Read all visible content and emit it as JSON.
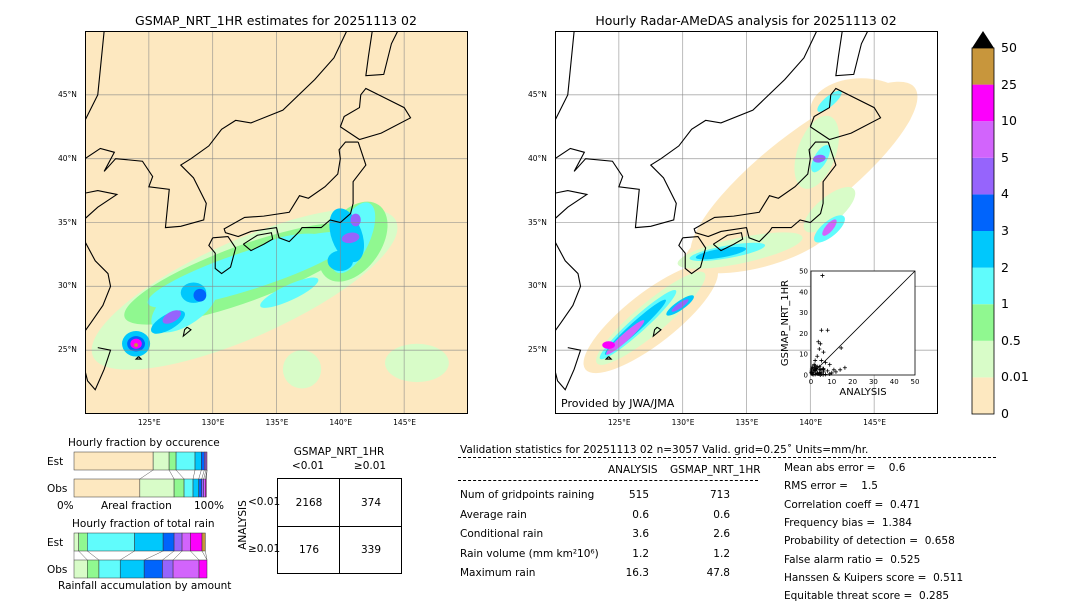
{
  "left_map": {
    "title": "GSMAP_NRT_1HR estimates for 20251113 02",
    "lat_labels": [
      "45°N",
      "40°N",
      "35°N",
      "30°N",
      "25°N"
    ],
    "lon_labels": [
      "125°E",
      "130°E",
      "135°E",
      "140°E",
      "145°E"
    ]
  },
  "right_map": {
    "title": "Hourly Radar-AMeDAS analysis for 20251113 02",
    "lat_labels": [
      "45°N",
      "40°N",
      "35°N",
      "30°N",
      "25°N"
    ],
    "lon_labels": [
      "125°E",
      "130°E",
      "135°E",
      "140°E",
      "145°E"
    ],
    "credit": "Provided by JWA/JMA"
  },
  "colorbar": {
    "labels": [
      "0",
      "0.01",
      "0.5",
      "1",
      "2",
      "3",
      "4",
      "5",
      "10",
      "25",
      "50"
    ],
    "colors": [
      "#fde8c0",
      "#d8fcc8",
      "#90f890",
      "#60fcfc",
      "#00c8fc",
      "#0064fc",
      "#9664fc",
      "#d264fc",
      "#fc00fc",
      "#c8963c"
    ],
    "extend_color": "#000000"
  },
  "chart_data": [
    {
      "type": "scatter",
      "xlabel": "ANALYSIS",
      "ylabel": "GSMAP_NRT_1HR",
      "xlim": [
        0,
        50
      ],
      "ylim": [
        0,
        50
      ],
      "ticks": [
        "0",
        "10",
        "20",
        "30",
        "40",
        "50"
      ],
      "diagonal": true,
      "points": [
        [
          5.5,
          47.8
        ],
        [
          5,
          21.5
        ],
        [
          8,
          21.5
        ],
        [
          3.5,
          16
        ],
        [
          4.5,
          15
        ],
        [
          4,
          12.5
        ],
        [
          14.5,
          13
        ],
        [
          6,
          11
        ],
        [
          3,
          9
        ],
        [
          2,
          7
        ],
        [
          5,
          7
        ],
        [
          7,
          6
        ],
        [
          9,
          5
        ],
        [
          11,
          2.5
        ],
        [
          16.3,
          3.5
        ],
        [
          14,
          2.5
        ],
        [
          1,
          3
        ],
        [
          2,
          2
        ],
        [
          3,
          1
        ],
        [
          4,
          2.5
        ],
        [
          1,
          1
        ],
        [
          0.5,
          0.5
        ],
        [
          2,
          0.3
        ],
        [
          3,
          4
        ],
        [
          6,
          3
        ],
        [
          8,
          2
        ],
        [
          10,
          1
        ],
        [
          12,
          1.5
        ],
        [
          0.3,
          2
        ],
        [
          1.5,
          5
        ],
        [
          2.5,
          3
        ],
        [
          4,
          1
        ],
        [
          5,
          0.5
        ],
        [
          6,
          1.5
        ],
        [
          7,
          0.3
        ],
        [
          9,
          0.5
        ],
        [
          1,
          0.2
        ],
        [
          0.2,
          1
        ],
        [
          3.5,
          0.5
        ],
        [
          2,
          4.5
        ]
      ]
    },
    {
      "type": "bar",
      "title": "Hourly fraction by occurence",
      "categories": [
        "Est",
        "Obs"
      ],
      "xlabel": "Areal fraction",
      "x_ticks": [
        "0%",
        "100%"
      ],
      "series": [
        {
          "values_percent": [
            59.5,
            12,
            5.25,
            14.25,
            4.75,
            2.25,
            1.25,
            0.75,
            0,
            0
          ]
        },
        {
          "values_percent": [
            49.5,
            25.75,
            7.5,
            6.75,
            4.25,
            2.25,
            1.5,
            1.25,
            0.75,
            0
          ]
        }
      ]
    },
    {
      "type": "bar",
      "title": "Hourly fraction of total rain",
      "categories": [
        "Est",
        "Obs"
      ],
      "xlabel": "Rainfall accumulation by amount",
      "series": [
        {
          "values_percent": [
            0,
            3.5,
            6.5,
            35.5,
            21.5,
            8.25,
            6,
            6.25,
            8.75,
            2.5
          ]
        },
        {
          "values_percent": [
            0,
            10,
            8.75,
            16,
            18,
            13.75,
            8,
            19.5,
            6,
            0
          ]
        }
      ]
    }
  ],
  "contingency": {
    "col_title": "GSMAP_NRT_1HR",
    "col_labels": [
      "<0.01",
      "≥0.01"
    ],
    "row_title": "ANALYSIS",
    "row_labels": [
      "<0.01",
      "≥0.01"
    ],
    "cells": [
      [
        "2168",
        "374"
      ],
      [
        "176",
        "339"
      ]
    ]
  },
  "validation": {
    "header": "Validation statistics for 20251113 02  n=3057 Valid. grid=0.25˚ Units=mm/hr.",
    "col_headers": [
      "ANALYSIS",
      "GSMAP_NRT_1HR"
    ],
    "rows": [
      {
        "label": "Num of gridpoints raining",
        "analysis": "515",
        "gsmap": "713"
      },
      {
        "label": "Average rain",
        "analysis": "0.6",
        "gsmap": "0.6"
      },
      {
        "label": "Conditional rain",
        "analysis": "3.6",
        "gsmap": "2.6"
      },
      {
        "label": "Rain volume (mm km²10⁶)",
        "analysis": "1.2",
        "gsmap": "1.2"
      },
      {
        "label": "Maximum rain",
        "analysis": "16.3",
        "gsmap": "47.8"
      }
    ],
    "scores": [
      "Mean abs error =    0.6",
      "RMS error =    1.5",
      "Correlation coeff =  0.471",
      "Frequency bias =  1.384",
      "Probability of detection =  0.658",
      "False alarm ratio =  0.525",
      "Hanssen & Kuipers score =  0.511",
      "Equitable threat score =  0.285"
    ]
  }
}
